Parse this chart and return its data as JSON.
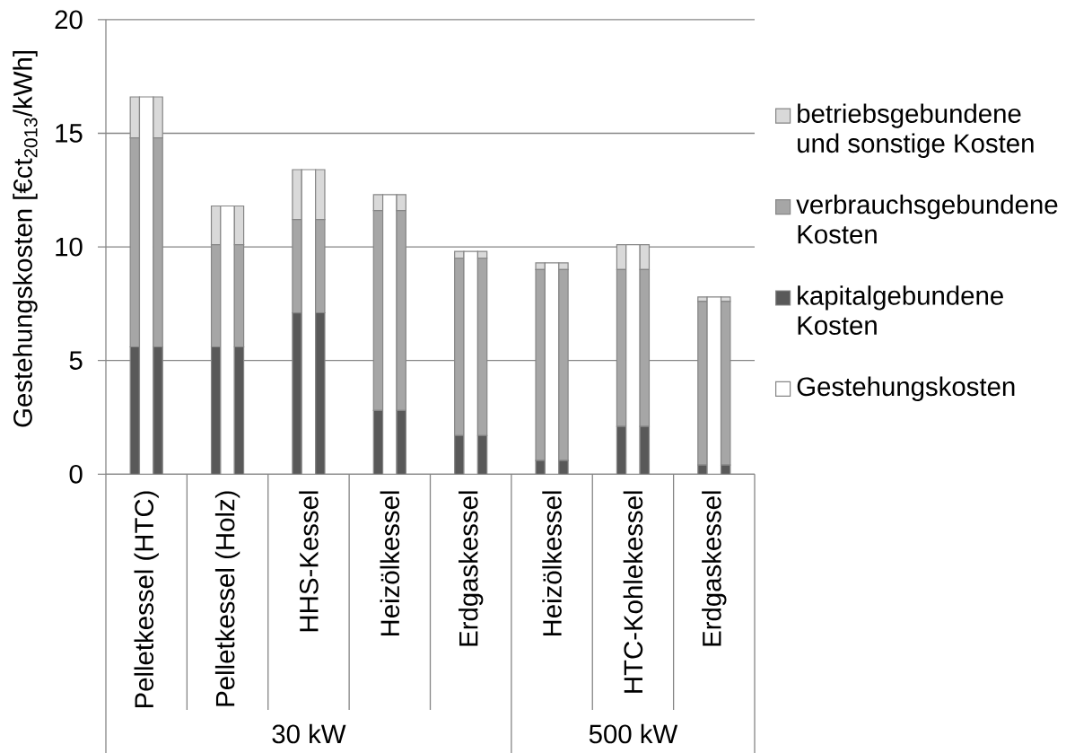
{
  "chart_data": [
    {
      "type": "bar",
      "stacked": true,
      "ylabel": "Gestehungskosten [€ct$_{2013}$/kWh]",
      "categories": [
        "Pelletkessel (HTC)",
        "Pelletkessel (Holz)",
        "HHS-Kessel",
        "Heizölkessel",
        "Erdgaskessel",
        "Heizölkessel",
        "HTC-Kohlekessel",
        "Erdgaskessel"
      ],
      "series": [
        {
          "name": "kapitalgebundene Kosten",
          "color": "#595959",
          "values": [
            5.6,
            5.6,
            7.1,
            2.8,
            1.7,
            0.6,
            2.1,
            0.4
          ]
        },
        {
          "name": "verbrauchsgebundene Kosten",
          "color": "#a6a6a6",
          "values": [
            9.2,
            4.5,
            4.1,
            8.8,
            7.8,
            8.4,
            6.9,
            7.2
          ]
        },
        {
          "name": "betriebsgebundene und sonstige Kosten",
          "color": "#d9d9d9",
          "values": [
            1.8,
            1.7,
            2.2,
            0.7,
            0.3,
            0.3,
            1.1,
            0.2
          ]
        }
      ],
      "ylim": [
        0,
        20
      ],
      "yticks": [
        0,
        5,
        10,
        15,
        20
      ],
      "grid": "y",
      "legend": "right",
      "annotations": [
        "30 kW",
        "500 kW"
      ]
    },
    {
      "type": "bar",
      "categories": [
        null,
        null,
        null,
        null,
        null,
        null,
        null,
        null
      ],
      "series": [
        {
          "name": "Gestehungskosten",
          "color": "#ffffff",
          "values": [
            16.6,
            11.8,
            13.4,
            12.3,
            9.8,
            9.3,
            10.1,
            7.8
          ]
        }
      ],
      "ylim": [
        0,
        20
      ],
      "tick_labels": false,
      "legend": "right"
    },
    {
      "type": "bar",
      "stacked": true,
      "categories": [
        null,
        null,
        null,
        null,
        null,
        null,
        null,
        null
      ],
      "series": [
        {
          "color": "#595959",
          "values": [
            5.6,
            5.6,
            7.1,
            2.8,
            1.7,
            0.6,
            2.1,
            0.4
          ]
        },
        {
          "color": "#a6a6a6",
          "values": [
            9.2,
            4.5,
            4.1,
            8.8,
            7.8,
            8.4,
            6.9,
            7.2
          ]
        },
        {
          "color": "#d9d9d9",
          "values": [
            1.8,
            1.7,
            2.2,
            0.7,
            0.3,
            0.3,
            1.1,
            0.2
          ]
        }
      ],
      "ylim": [
        0,
        20
      ],
      "tick_labels": false
    }
  ]
}
